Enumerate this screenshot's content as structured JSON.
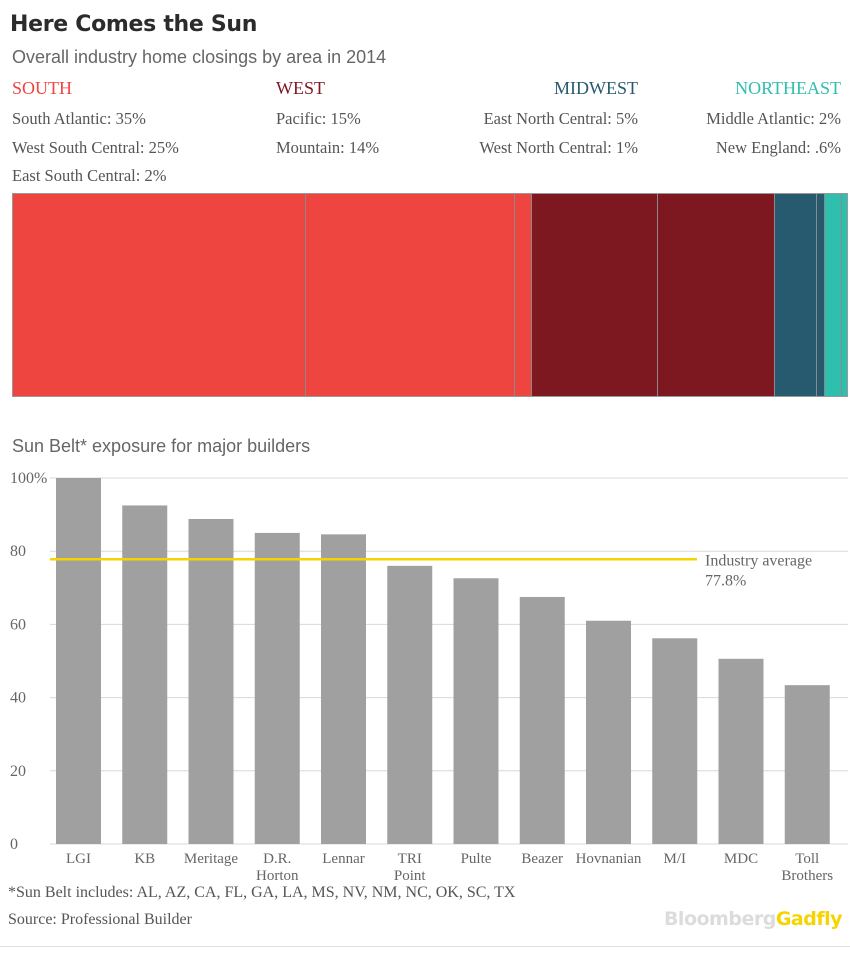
{
  "title": "Here Comes the Sun",
  "subtitle": "Overall industry home closings by area in 2014",
  "regions": [
    {
      "name": "SOUTH",
      "color": "#ef4540",
      "lines": [
        "South Atlantic: 35%",
        "West South Central: 25%",
        "East South Central: 2%"
      ]
    },
    {
      "name": "WEST",
      "color": "#7d1821",
      "lines": [
        "Pacific: 15%",
        "Mountain: 14%"
      ]
    },
    {
      "name": "MIDWEST",
      "color": "#275a6e",
      "lines": [
        "East North Central: 5%",
        "West North Central: 1%"
      ]
    },
    {
      "name": "NORTHEAST",
      "color": "#2ebfae",
      "lines": [
        "Middle Atlantic: 2%",
        "New England: .6%"
      ]
    }
  ],
  "treemap": [
    {
      "area": "South Atlantic",
      "value": 35,
      "color": "#ef4540"
    },
    {
      "area": "West South Central",
      "value": 25,
      "color": "#ef4540"
    },
    {
      "area": "East South Central",
      "value": 2,
      "color": "#ef4540"
    },
    {
      "area": "Pacific",
      "value": 15,
      "color": "#7d1821"
    },
    {
      "area": "Mountain",
      "value": 14,
      "color": "#7d1821"
    },
    {
      "area": "East North Central",
      "value": 5,
      "color": "#275a6e"
    },
    {
      "area": "West North Central",
      "value": 1,
      "color": "#275a6e"
    },
    {
      "area": "Middle Atlantic",
      "value": 2,
      "color": "#2ebfae"
    },
    {
      "area": "New England",
      "value": 0.6,
      "color": "#2ebfae"
    }
  ],
  "chart_data": {
    "type": "bar",
    "title": "Sun Belt* exposure for major builders",
    "categories": [
      "LGI",
      "KB",
      "Meritage",
      "D.R. Horton",
      "Lennar",
      "TRI Point",
      "Pulte",
      "Beazer",
      "Hovnanian",
      "M/I",
      "MDC",
      "Toll Brothers"
    ],
    "values": [
      100,
      92.5,
      88.8,
      85,
      84.6,
      76,
      72.6,
      67.5,
      61,
      56.2,
      50.6,
      43.4
    ],
    "yticks": [
      "100%",
      "80",
      "60",
      "40",
      "20",
      "0"
    ],
    "ylim": [
      0,
      100
    ],
    "grid": true,
    "bar_color": "#a0a0a1",
    "reference_line": {
      "value": 77.8,
      "label_line1": "Industry average",
      "label_line2": "77.8%",
      "color": "#f5d400"
    }
  },
  "footnote": "*Sun Belt includes:  AL, AZ, CA, FL, GA, LA, MS, NV, NM, NC, OK, SC, TX",
  "source": "Source: Professional Builder",
  "logo": {
    "part1": "Bloomberg",
    "part2": "Gadfly",
    "color1": "#dcdcdc",
    "color2": "#f5d400"
  }
}
